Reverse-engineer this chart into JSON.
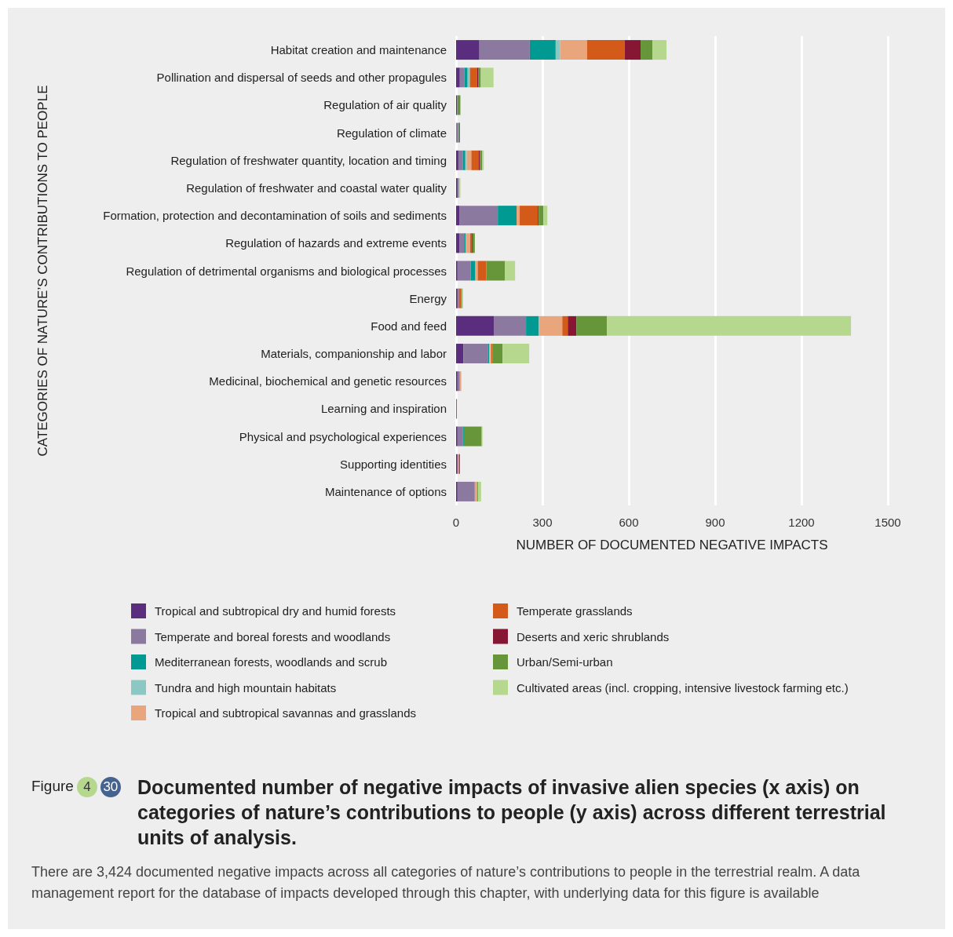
{
  "chart_data": {
    "type": "bar",
    "orientation": "horizontal",
    "stacked": true,
    "title": "Documented number of negative impacts of invasive alien species (x axis) on categories of nature’s contributions to people (y axis) across different terrestrial units of analysis.",
    "xlabel": "NUMBER OF DOCUMENTED NEGATIVE IMPACTS",
    "ylabel": "CATEGORIES OF NATURE’S CONTRIBUTIONS TO PEOPLE",
    "categories": [
      "Habitat creation and maintenance",
      "Pollination and dispersal of seeds and other propagules",
      "Regulation of air quality",
      "Regulation of climate",
      "Regulation of freshwater quantity, location and timing",
      "Regulation of freshwater and coastal water quality",
      "Formation, protection and decontamination of soils and sediments",
      "Regulation of hazards and extreme events",
      "Regulation of detrimental organisms and biological processes",
      "Energy",
      "Food and feed",
      "Materials, companionship and labor",
      "Medicinal, biochemical and genetic resources",
      "Learning and inspiration",
      "Physical and psychological experiences",
      "Supporting identities",
      "Maintenance of options"
    ],
    "series": [
      {
        "name": "Tropical and subtropical dry and humid forests",
        "color": "#5a2d7e",
        "values": [
          81,
          13,
          3,
          null,
          8,
          5,
          11,
          11,
          5,
          5,
          131,
          25,
          5,
          0,
          5,
          5,
          5
        ]
      },
      {
        "name": "Temperate and boreal forests and woodlands",
        "color": "#8b79a0",
        "values": [
          175,
          16,
          2,
          7,
          16,
          5,
          134,
          19,
          46,
          5,
          112,
          85,
          8,
          1,
          19,
          0,
          60
        ]
      },
      {
        "name": "Mediterranean forests, woodlands and scrub",
        "color": "#009a93",
        "values": [
          90,
          11,
          0,
          3,
          8,
          0,
          65,
          3,
          16,
          0,
          44,
          5,
          0,
          0,
          3,
          0,
          0
        ]
      },
      {
        "name": "Tundra and high mountain habitats",
        "color": "#8cc8c3",
        "values": [
          15,
          8,
          0,
          0,
          5,
          0,
          0,
          0,
          0,
          0,
          2,
          3,
          0,
          0,
          0,
          0,
          0
        ]
      },
      {
        "name": "Tropical and subtropical savannas and grasslands",
        "color": "#e9a67d",
        "values": [
          94,
          0,
          0,
          0,
          16,
          0,
          11,
          16,
          8,
          0,
          80,
          4,
          5,
          0,
          0,
          5,
          9
        ]
      },
      {
        "name": "Temperate grasslands",
        "color": "#d45a1a",
        "values": [
          131,
          25,
          0,
          1,
          25,
          null,
          63,
          5,
          30,
          8,
          19,
          4,
          0,
          0,
          0,
          0,
          0
        ]
      },
      {
        "name": "Deserts and xeric shrublands",
        "color": "#861633",
        "values": [
          55,
          5,
          0,
          2,
          5,
          0,
          3,
          3,
          0,
          0,
          30,
          0,
          0,
          2,
          0,
          3,
          0
        ]
      },
      {
        "name": "Urban/Semi-urban",
        "color": "#67963a",
        "values": [
          41,
          8,
          10,
          0,
          8,
          0,
          16,
          8,
          65,
          3,
          106,
          35,
          0,
          0,
          62,
          0,
          3
        ]
      },
      {
        "name": "Cultivated areas (incl. cropping, intensive livestock farming etc.)",
        "color": "#b5d88e",
        "values": [
          49,
          44,
          null,
          0,
          5,
          5,
          14,
          0,
          35,
          3,
          848,
          93,
          0,
          0,
          3,
          0,
          10
        ]
      }
    ],
    "xlim": [
      0,
      1500
    ],
    "xticks": [
      0,
      300,
      600,
      900,
      1200,
      1500
    ],
    "grid": "x",
    "legend": "bottom",
    "annotations": [
      "Figure",
      "4",
      "30",
      "There are 3,424 documented negative impacts across all categories of nature’s contributions to people in the terrestrial realm. A data management report for the database of impacts developed through this chapter, with underlying data for this figure is available"
    ]
  }
}
